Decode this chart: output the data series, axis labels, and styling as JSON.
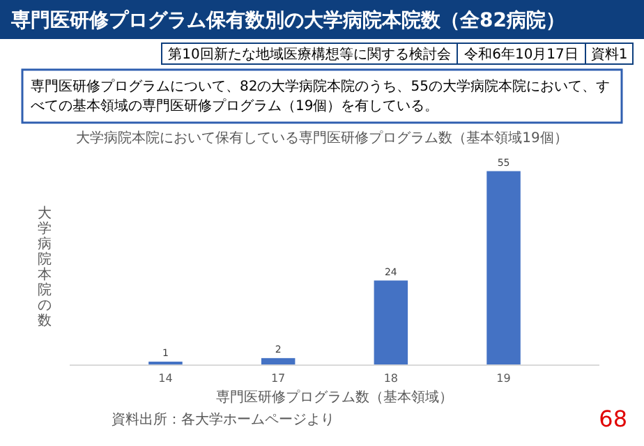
{
  "chart_data": {
    "type": "bar",
    "title": "大学病院本院において保有している専門医研修プログラム数（基本領域19個）",
    "subtitle": "専門医研修プログラムについて、82の大学病院本院のうち、55の大学病院本院において、すべての基本領域の専門医研修プログラム（19個）を有している。",
    "xlabel": "専門医研修プログラム数（基本領域）",
    "ylabel": "大学病院本院の数",
    "categories": [
      "14",
      "17",
      "18",
      "19"
    ],
    "values": [
      1,
      2,
      24,
      55
    ],
    "color": "#4472c4",
    "data_labels": true,
    "annotations": [
      "専門医研修プログラム保有数別の大学病院本院数（全82病院）",
      "第10回新たな地域医療構想等に関する検討会",
      "令和6年10月17日",
      "資料",
      "1",
      "資料出所：各大学ホームページより",
      "68"
    ]
  }
}
